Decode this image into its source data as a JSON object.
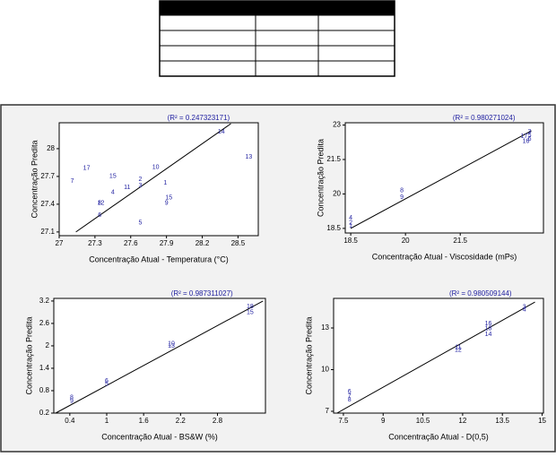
{
  "chart_data": [
    {
      "type": "scatter",
      "annotation": "(R² = 0.247323171)",
      "x_label": "Concentração Atual - Temperatura (°C)",
      "y_label": "Concentração Predita",
      "xlim": [
        27,
        28.67
      ],
      "ylim": [
        27.06,
        28.28
      ],
      "xticks": [
        27,
        27.3,
        27.6,
        27.9,
        28.2,
        28.5
      ],
      "yticks": [
        27.1,
        27.4,
        27.7,
        28
      ],
      "color": "#1f1fa0",
      "point_labels": [
        "1",
        "2",
        "3",
        "4",
        "5",
        "6",
        "7",
        "8",
        "9",
        "10",
        "11",
        "12",
        "13",
        "14",
        "15",
        "15",
        "17"
      ],
      "x": [
        27.89,
        27.68,
        27.68,
        27.45,
        27.68,
        27.34,
        27.11,
        27.34,
        27.9,
        27.81,
        27.57,
        27.35,
        28.59,
        28.36,
        27.45,
        27.92,
        27.23
      ],
      "y": [
        27.63,
        27.67,
        27.6,
        27.53,
        27.2,
        27.28,
        27.65,
        27.41,
        27.41,
        27.8,
        27.58,
        27.41,
        27.91,
        28.18,
        27.7,
        27.47,
        27.79
      ],
      "fit": {
        "x": [
          27.14,
          28.44
        ],
        "y": [
          27.1,
          28.27
        ]
      }
    },
    {
      "type": "scatter",
      "annotation": "(R² = 0.980271024)",
      "x_label": "Concentração Atual - Viscosidade (mPs)",
      "y_label": "Concentração Predita",
      "xlim": [
        18.35,
        23.78
      ],
      "ylim": [
        18.3,
        23.1
      ],
      "xticks": [
        18.5,
        20,
        21.5
      ],
      "yticks": [
        18.5,
        20,
        21.5,
        23
      ],
      "color": "#1f1fa0",
      "point_labels": [
        "4",
        "2",
        "1",
        "8",
        "9",
        "3",
        "5",
        "6",
        "17",
        "16"
      ],
      "x": [
        18.5,
        18.5,
        18.5,
        19.9,
        19.9,
        23.4,
        23.4,
        23.4,
        23.25,
        23.3
      ],
      "y": [
        18.95,
        18.75,
        18.6,
        20.15,
        19.85,
        22.7,
        22.55,
        22.4,
        22.5,
        22.3
      ],
      "fit": {
        "x": [
          18.5,
          23.45
        ],
        "y": [
          18.5,
          22.75
        ]
      }
    },
    {
      "type": "scatter",
      "annotation": "(R² = 0.987311027)",
      "x_label": "Concentração Atual - BS&W (%)",
      "y_label": "Concentração Predita",
      "xlim": [
        0.14,
        3.58
      ],
      "ylim": [
        0.2,
        3.27
      ],
      "xticks": [
        0.4,
        1,
        1.6,
        2.2,
        2.8
      ],
      "yticks": [
        0.2,
        0.8,
        1.4,
        2,
        2.6,
        3.2
      ],
      "color": "#1f1fa0",
      "point_labels": [
        "8",
        "9",
        "6",
        "5",
        "10",
        "13",
        "18",
        "15"
      ],
      "x": [
        0.43,
        0.43,
        1,
        1,
        2.05,
        2.05,
        3.33,
        3.33
      ],
      "y": [
        0.61,
        0.52,
        1.06,
        0.98,
        2.05,
        2,
        3.05,
        2.9
      ],
      "fit": {
        "x": [
          0.17,
          3.54
        ],
        "y": [
          0.2,
          3.2
        ]
      }
    },
    {
      "type": "scatter",
      "annotation": "(R² = 0.980509144)",
      "x_label": "Concentração Atual - D(0,5)",
      "y_label": "Concentração Predita",
      "xlim": [
        7.13,
        15.05
      ],
      "ylim": [
        6.87,
        15.13
      ],
      "xticks": [
        7.5,
        9,
        10.5,
        12,
        13.5,
        15
      ],
      "yticks": [
        7,
        10,
        13
      ],
      "color": "#1f1fa0",
      "point_labels": [
        "6",
        "7",
        "8",
        "11",
        "12",
        "16",
        "18",
        "14",
        "3",
        "4"
      ],
      "x": [
        7.73,
        7.73,
        7.73,
        11.83,
        11.83,
        12.97,
        12.97,
        12.97,
        14.33,
        14.33
      ],
      "y": [
        8.42,
        8.1,
        7.84,
        11.6,
        11.4,
        13.3,
        12.97,
        12.55,
        14.5,
        14.3
      ],
      "fit": {
        "x": [
          7.26,
          14.73
        ],
        "y": [
          6.87,
          14.87
        ]
      }
    }
  ]
}
